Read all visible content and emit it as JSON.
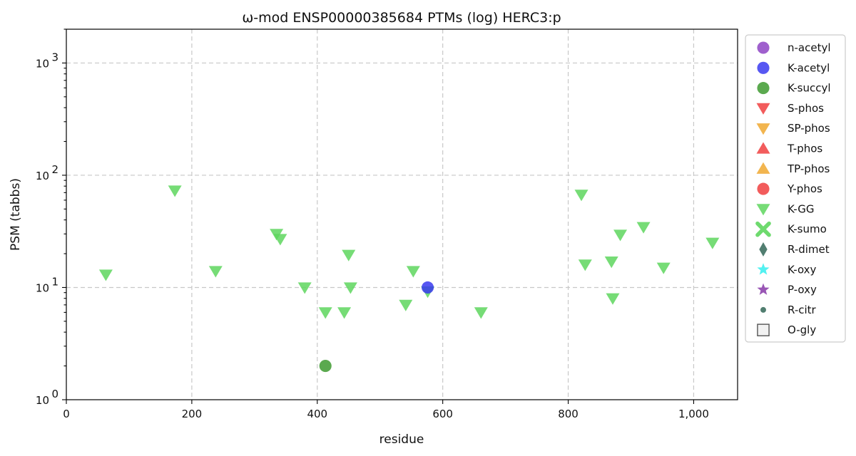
{
  "chart_data": {
    "type": "scatter",
    "title": "ω-mod ENSP00000385684 PTMs (log) HERC3:p",
    "xlabel": "residue",
    "ylabel": "PSM (tabbs)",
    "xlim": [
      0,
      1070
    ],
    "ylim": [
      1,
      2000
    ],
    "yscale": "log",
    "grid": true,
    "legend_position": "right-outside",
    "x_ticks": [
      0,
      200,
      400,
      600,
      800,
      1000
    ],
    "x_tick_labels": [
      "0",
      "200",
      "400",
      "600",
      "800",
      "1,000"
    ],
    "y_ticks": [
      1,
      10,
      100,
      1000
    ],
    "y_tick_labels": [
      {
        "base": "10",
        "exp": "0"
      },
      {
        "base": "10",
        "exp": "1"
      },
      {
        "base": "10",
        "exp": "2"
      },
      {
        "base": "10",
        "exp": "3"
      }
    ],
    "series": [
      {
        "name": "n-acetyl",
        "marker": "circle",
        "color": "#8e44c4",
        "points": []
      },
      {
        "name": "K-acetyl",
        "marker": "circle",
        "color": "#3a3af0",
        "points": [
          [
            576,
            10
          ]
        ]
      },
      {
        "name": "K-succyl",
        "marker": "circle",
        "color": "#3e9a30",
        "points": [
          [
            413,
            2
          ]
        ]
      },
      {
        "name": "S-phos",
        "marker": "triangle-down",
        "color": "#f04040",
        "points": []
      },
      {
        "name": "SP-phos",
        "marker": "triangle-down",
        "color": "#f0a830",
        "points": []
      },
      {
        "name": "T-phos",
        "marker": "triangle-up",
        "color": "#f04040",
        "points": []
      },
      {
        "name": "TP-phos",
        "marker": "triangle-up",
        "color": "#f0a830",
        "points": []
      },
      {
        "name": "Y-phos",
        "marker": "circle",
        "color": "#f04040",
        "points": []
      },
      {
        "name": "K-GG",
        "marker": "triangle-down",
        "color": "#5ed65e",
        "points": [
          [
            63,
            13
          ],
          [
            173,
            73
          ],
          [
            238,
            14
          ],
          [
            335,
            30
          ],
          [
            341,
            27
          ],
          [
            380,
            10
          ],
          [
            413,
            6
          ],
          [
            443,
            6
          ],
          [
            450,
            19.5
          ],
          [
            453,
            10
          ],
          [
            541,
            7
          ],
          [
            553,
            14
          ],
          [
            576,
            9.2
          ],
          [
            661,
            6
          ],
          [
            821,
            67
          ],
          [
            827,
            16
          ],
          [
            869,
            17
          ],
          [
            871,
            8
          ],
          [
            883,
            29.5
          ],
          [
            920,
            34.5
          ],
          [
            952,
            15
          ],
          [
            1030,
            25
          ]
        ]
      },
      {
        "name": "K-sumo",
        "marker": "x",
        "color": "#5ed65e",
        "points": []
      },
      {
        "name": "R-dimet",
        "marker": "diamond",
        "color": "#3e7060",
        "points": []
      },
      {
        "name": "K-oxy",
        "marker": "star",
        "color": "#40f0f0",
        "points": []
      },
      {
        "name": "P-oxy",
        "marker": "star",
        "color": "#8e44ad",
        "points": []
      },
      {
        "name": "R-citr",
        "marker": "dot",
        "color": "#3e7060",
        "points": []
      },
      {
        "name": "O-gly",
        "marker": "square-open",
        "color": "#555555",
        "points": []
      }
    ]
  }
}
